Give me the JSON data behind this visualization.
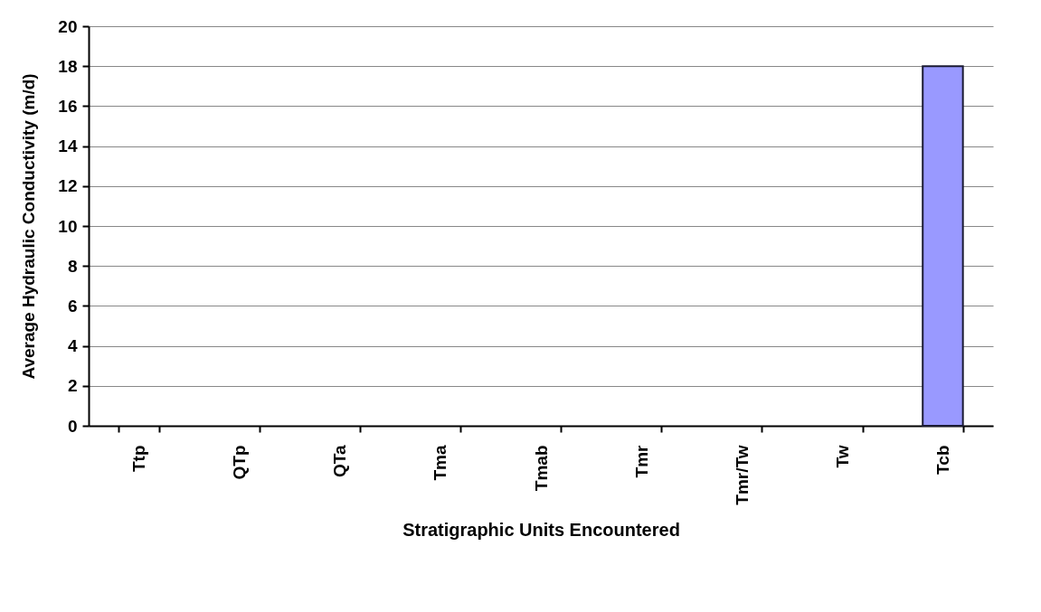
{
  "chart_data": {
    "type": "bar",
    "xlabel": "Stratigraphic Units Encountered",
    "ylabel": "Average Hydraulic Conductivity (m/d)",
    "categories": [
      "Ttp",
      "QTp",
      "QTa",
      "Tma",
      "Tmab",
      "Tmr",
      "Tmr/Tw",
      "Tw",
      "Tcb"
    ],
    "values": [
      null,
      null,
      null,
      null,
      null,
      null,
      null,
      null,
      18
    ],
    "color": "#9999ff",
    "ylim": [
      0,
      20
    ],
    "yticks": [
      0,
      2,
      4,
      6,
      8,
      10,
      12,
      14,
      16,
      18,
      20
    ],
    "grid": "y"
  }
}
